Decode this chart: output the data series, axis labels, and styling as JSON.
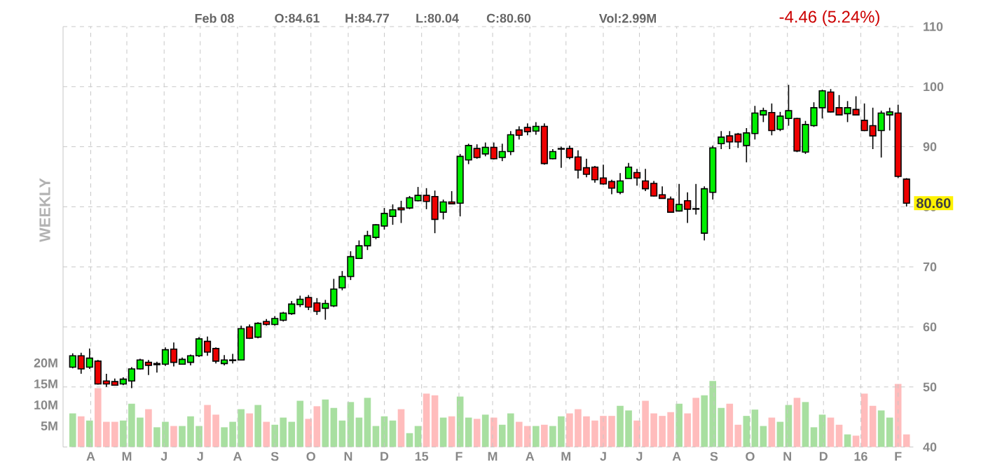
{
  "chart_data": {
    "type": "candlestick",
    "x": [
      "2014-03-17",
      "2014-03-24",
      "2014-03-31",
      "2014-04-07",
      "2014-04-14",
      "2014-04-21",
      "2014-04-28",
      "2014-05-05",
      "2014-05-12",
      "2014-05-19",
      "2014-05-26",
      "2014-06-02",
      "2014-06-09",
      "2014-06-16",
      "2014-06-23",
      "2014-06-30",
      "2014-07-07",
      "2014-07-14",
      "2014-07-21",
      "2014-07-28",
      "2014-08-04",
      "2014-08-11",
      "2014-08-18",
      "2014-08-25",
      "2014-09-01",
      "2014-09-08",
      "2014-09-15",
      "2014-09-22",
      "2014-09-29",
      "2014-10-06",
      "2014-10-13",
      "2014-10-20",
      "2014-10-27",
      "2014-11-03",
      "2014-11-10",
      "2014-11-17",
      "2014-11-24",
      "2014-12-01",
      "2014-12-08",
      "2014-12-15",
      "2014-12-22",
      "2014-12-29",
      "2015-01-05",
      "2015-01-12",
      "2015-01-19",
      "2015-01-26",
      "2015-02-02",
      "2015-02-09",
      "2015-02-16",
      "2015-02-23",
      "2015-03-02",
      "2015-03-09",
      "2015-03-16",
      "2015-03-23",
      "2015-03-30",
      "2015-04-06",
      "2015-04-13",
      "2015-04-20",
      "2015-04-27",
      "2015-05-04",
      "2015-05-11",
      "2015-05-18",
      "2015-05-25",
      "2015-06-01",
      "2015-06-08",
      "2015-06-15",
      "2015-06-22",
      "2015-06-29",
      "2015-07-06",
      "2015-07-13",
      "2015-07-20",
      "2015-07-27",
      "2015-08-03",
      "2015-08-10",
      "2015-08-17",
      "2015-08-24",
      "2015-08-31",
      "2015-09-07",
      "2015-09-14",
      "2015-09-21",
      "2015-09-28",
      "2015-10-05",
      "2015-10-12",
      "2015-10-19",
      "2015-10-26",
      "2015-11-02",
      "2015-11-09",
      "2015-11-16",
      "2015-11-23",
      "2015-11-30",
      "2015-12-07",
      "2015-12-14",
      "2015-12-21",
      "2015-12-28",
      "2016-01-04",
      "2016-01-11",
      "2016-01-18",
      "2016-01-25",
      "2016-02-01",
      "2016-02-08"
    ],
    "ohlc": [
      [
        53.3,
        55.6,
        53.1,
        55.2
      ],
      [
        55.2,
        55.7,
        52.2,
        53.0
      ],
      [
        53.3,
        56.4,
        53.0,
        54.8
      ],
      [
        54.3,
        54.5,
        50.4,
        50.5
      ],
      [
        51.0,
        52.2,
        50.0,
        50.5
      ],
      [
        50.9,
        51.4,
        50.2,
        50.3
      ],
      [
        50.5,
        51.6,
        50.3,
        51.3
      ],
      [
        51.0,
        53.3,
        49.8,
        53.0
      ],
      [
        53.0,
        54.7,
        52.9,
        54.5
      ],
      [
        54.1,
        54.5,
        52.0,
        53.6
      ],
      [
        53.7,
        54.2,
        52.4,
        53.9
      ],
      [
        53.8,
        56.6,
        53.5,
        56.2
      ],
      [
        56.3,
        57.4,
        53.4,
        54.1
      ],
      [
        53.8,
        54.9,
        53.7,
        54.6
      ],
      [
        54.1,
        55.4,
        53.6,
        55.2
      ],
      [
        55.2,
        58.3,
        55.0,
        58.0
      ],
      [
        57.6,
        58.4,
        55.2,
        55.8
      ],
      [
        56.4,
        56.6,
        53.9,
        54.3
      ],
      [
        53.9,
        55.3,
        53.6,
        54.5
      ],
      [
        54.4,
        55.5,
        53.9,
        54.5
      ],
      [
        54.5,
        60.2,
        54.5,
        59.7
      ],
      [
        60.0,
        60.4,
        58.0,
        58.1
      ],
      [
        58.3,
        60.8,
        58.1,
        60.6
      ],
      [
        60.9,
        61.3,
        60.2,
        60.4
      ],
      [
        60.4,
        61.8,
        60.2,
        61.4
      ],
      [
        61.1,
        62.5,
        60.9,
        62.3
      ],
      [
        62.2,
        64.3,
        62.0,
        63.8
      ],
      [
        63.7,
        65.2,
        63.3,
        64.6
      ],
      [
        64.9,
        65.3,
        62.8,
        63.3
      ],
      [
        64.0,
        64.8,
        62.0,
        62.6
      ],
      [
        63.1,
        64.5,
        61.2,
        63.9
      ],
      [
        63.5,
        68.0,
        63.3,
        66.3
      ],
      [
        66.5,
        69.3,
        66.1,
        68.4
      ],
      [
        68.4,
        72.6,
        67.8,
        71.7
      ],
      [
        71.4,
        74.4,
        71.3,
        73.5
      ],
      [
        73.5,
        76.0,
        72.8,
        75.2
      ],
      [
        74.9,
        77.1,
        74.6,
        77.0
      ],
      [
        76.8,
        79.8,
        76.2,
        78.9
      ],
      [
        78.4,
        80.4,
        77.0,
        79.5
      ],
      [
        79.8,
        81.0,
        77.3,
        79.5
      ],
      [
        79.8,
        81.8,
        79.6,
        81.5
      ],
      [
        81.0,
        83.3,
        80.9,
        81.9
      ],
      [
        81.9,
        83.1,
        79.6,
        80.9
      ],
      [
        81.7,
        82.7,
        75.6,
        77.9
      ],
      [
        79.1,
        81.2,
        77.9,
        80.8
      ],
      [
        80.8,
        82.6,
        80.5,
        80.5
      ],
      [
        80.6,
        88.8,
        78.4,
        88.4
      ],
      [
        87.8,
        90.5,
        87.1,
        90.2
      ],
      [
        89.7,
        90.4,
        88.0,
        88.2
      ],
      [
        88.8,
        90.7,
        88.4,
        89.9
      ],
      [
        89.9,
        90.7,
        87.9,
        88.0
      ],
      [
        88.2,
        90.5,
        87.6,
        89.2
      ],
      [
        89.2,
        92.6,
        88.6,
        92.0
      ],
      [
        92.8,
        93.4,
        91.2,
        91.9
      ],
      [
        93.2,
        93.9,
        91.9,
        92.5
      ],
      [
        92.6,
        94.1,
        92.0,
        93.4
      ],
      [
        93.4,
        93.9,
        87.0,
        87.2
      ],
      [
        88.0,
        89.6,
        87.9,
        89.2
      ],
      [
        89.6,
        90.0,
        86.5,
        89.7
      ],
      [
        89.7,
        90.2,
        87.9,
        88.2
      ],
      [
        88.3,
        89.4,
        84.7,
        86.1
      ],
      [
        86.5,
        88.0,
        84.9,
        85.4
      ],
      [
        86.6,
        86.8,
        84.0,
        84.5
      ],
      [
        84.8,
        87.0,
        83.7,
        83.8
      ],
      [
        84.2,
        84.5,
        82.1,
        83.1
      ],
      [
        82.4,
        85.6,
        82.1,
        84.3
      ],
      [
        84.7,
        87.3,
        84.7,
        86.6
      ],
      [
        85.7,
        86.3,
        83.5,
        84.8
      ],
      [
        84.3,
        86.3,
        82.6,
        83.0
      ],
      [
        83.9,
        84.3,
        81.7,
        81.8
      ],
      [
        82.0,
        83.4,
        81.4,
        81.4
      ],
      [
        81.3,
        81.7,
        79.0,
        79.1
      ],
      [
        79.3,
        83.8,
        79.2,
        80.4
      ],
      [
        81.0,
        82.4,
        77.3,
        79.6
      ],
      [
        79.7,
        83.8,
        78.7,
        79.6
      ],
      [
        75.6,
        83.4,
        74.4,
        83.0
      ],
      [
        82.4,
        90.2,
        81.2,
        89.8
      ],
      [
        90.5,
        92.6,
        89.6,
        91.6
      ],
      [
        91.8,
        92.6,
        89.6,
        90.8
      ],
      [
        92.1,
        92.3,
        89.8,
        90.8
      ],
      [
        90.2,
        93.1,
        87.4,
        92.3
      ],
      [
        92.2,
        96.8,
        91.2,
        95.6
      ],
      [
        95.3,
        96.5,
        94.1,
        96.0
      ],
      [
        95.7,
        97.2,
        91.9,
        92.7
      ],
      [
        92.9,
        95.8,
        92.6,
        95.1
      ],
      [
        94.7,
        100.3,
        93.5,
        96.0
      ],
      [
        94.7,
        94.8,
        89.1,
        89.3
      ],
      [
        89.1,
        94.3,
        88.8,
        93.7
      ],
      [
        93.5,
        97.4,
        93.3,
        96.5
      ],
      [
        96.5,
        99.5,
        94.7,
        99.3
      ],
      [
        99.1,
        99.6,
        95.7,
        95.8
      ],
      [
        96.5,
        98.6,
        95.2,
        95.3
      ],
      [
        95.5,
        97.6,
        94.1,
        96.5
      ],
      [
        96.2,
        98.4,
        95.2,
        95.3
      ],
      [
        94.4,
        97.2,
        92.6,
        92.7
      ],
      [
        93.5,
        96.5,
        89.6,
        91.8
      ],
      [
        92.7,
        96.0,
        88.2,
        95.6
      ],
      [
        95.3,
        96.5,
        92.7,
        95.8
      ],
      [
        95.6,
        97.0,
        84.8,
        85.06
      ],
      [
        84.61,
        84.77,
        80.04,
        80.6
      ]
    ],
    "series": [
      {
        "type": "bar",
        "axis": "y2",
        "values": [
          8.0,
          7.3,
          6.3,
          14.0,
          6.0,
          6.0,
          6.3,
          10.3,
          7.0,
          9.0,
          4.7,
          6.0,
          5.0,
          5.0,
          7.3,
          5.0,
          10.0,
          7.7,
          4.7,
          6.0,
          9.0,
          8.0,
          10.0,
          6.0,
          5.3,
          7.0,
          6.0,
          11.0,
          6.7,
          9.7,
          11.3,
          9.3,
          6.3,
          10.7,
          7.0,
          11.7,
          5.0,
          7.3,
          6.3,
          9.0,
          3.3,
          5.0,
          12.7,
          12.3,
          7.0,
          7.3,
          12.0,
          7.0,
          6.7,
          7.7,
          7.0,
          5.3,
          8.0,
          6.0,
          5.0,
          5.0,
          5.3,
          5.0,
          7.3,
          8.0,
          9.0,
          7.3,
          6.3,
          7.4,
          7.4,
          9.8,
          8.7,
          6.3,
          11.0,
          8.0,
          7.4,
          8.3,
          10.3,
          8.0,
          11.7,
          12.3,
          15.7,
          9.3,
          10.3,
          5.3,
          7.4,
          8.9,
          5.0,
          7.0,
          6.0,
          10.0,
          11.7,
          10.7,
          4.7,
          7.7,
          7.0,
          5.3,
          3.0,
          2.7,
          12.7,
          9.8,
          8.7,
          7.0,
          15.0,
          3.0
        ],
        "colors": [
          "#a8dfa0",
          "#ffbcbc",
          "#a8dfa0",
          "#ffbcbc",
          "#ffbcbc",
          "#ffbcbc",
          "#a8dfa0",
          "#a8dfa0",
          "#a8dfa0",
          "#ffbcbc",
          "#a8dfa0",
          "#a8dfa0",
          "#ffbcbc",
          "#a8dfa0",
          "#a8dfa0",
          "#a8dfa0",
          "#ffbcbc",
          "#ffbcbc",
          "#a8dfa0",
          "#a8dfa0",
          "#a8dfa0",
          "#ffbcbc",
          "#a8dfa0",
          "#ffbcbc",
          "#a8dfa0",
          "#a8dfa0",
          "#a8dfa0",
          "#a8dfa0",
          "#ffbcbc",
          "#ffbcbc",
          "#a8dfa0",
          "#a8dfa0",
          "#a8dfa0",
          "#a8dfa0",
          "#a8dfa0",
          "#a8dfa0",
          "#a8dfa0",
          "#a8dfa0",
          "#a8dfa0",
          "#ffbcbc",
          "#a8dfa0",
          "#a8dfa0",
          "#ffbcbc",
          "#ffbcbc",
          "#a8dfa0",
          "#ffbcbc",
          "#a8dfa0",
          "#a8dfa0",
          "#ffbcbc",
          "#a8dfa0",
          "#ffbcbc",
          "#a8dfa0",
          "#a8dfa0",
          "#ffbcbc",
          "#ffbcbc",
          "#a8dfa0",
          "#ffbcbc",
          "#a8dfa0",
          "#a8dfa0",
          "#ffbcbc",
          "#ffbcbc",
          "#ffbcbc",
          "#ffbcbc",
          "#ffbcbc",
          "#ffbcbc",
          "#a8dfa0",
          "#a8dfa0",
          "#ffbcbc",
          "#ffbcbc",
          "#ffbcbc",
          "#ffbcbc",
          "#ffbcbc",
          "#a8dfa0",
          "#ffbcbc",
          "#ffbcbc",
          "#a8dfa0",
          "#a8dfa0",
          "#a8dfa0",
          "#ffbcbc",
          "#ffbcbc",
          "#a8dfa0",
          "#a8dfa0",
          "#a8dfa0",
          "#ffbcbc",
          "#a8dfa0",
          "#a8dfa0",
          "#ffbcbc",
          "#a8dfa0",
          "#a8dfa0",
          "#a8dfa0",
          "#ffbcbc",
          "#ffbcbc",
          "#a8dfa0",
          "#ffbcbc",
          "#ffbcbc",
          "#ffbcbc",
          "#a8dfa0",
          "#a8dfa0",
          "#ffbcbc",
          "#ffbcbc"
        ]
      }
    ],
    "xlim": [
      "2014-03-09",
      "2016-02-14"
    ],
    "xticks": [
      {
        "value": "2014-04-01",
        "label": "A"
      },
      {
        "value": "2014-05-01",
        "label": "M"
      },
      {
        "value": "2014-06-01",
        "label": "J"
      },
      {
        "value": "2014-07-01",
        "label": "J"
      },
      {
        "value": "2014-08-01",
        "label": "A"
      },
      {
        "value": "2014-09-01",
        "label": "S"
      },
      {
        "value": "2014-10-01",
        "label": "O"
      },
      {
        "value": "2014-11-01",
        "label": "N"
      },
      {
        "value": "2014-12-01",
        "label": "D"
      },
      {
        "value": "2015-01-01",
        "label": "15"
      },
      {
        "value": "2015-02-01",
        "label": "F"
      },
      {
        "value": "2015-03-01",
        "label": "M"
      },
      {
        "value": "2015-04-01",
        "label": "A"
      },
      {
        "value": "2015-05-01",
        "label": "M"
      },
      {
        "value": "2015-06-01",
        "label": "J"
      },
      {
        "value": "2015-07-01",
        "label": "J"
      },
      {
        "value": "2015-08-01",
        "label": "A"
      },
      {
        "value": "2015-09-01",
        "label": "S"
      },
      {
        "value": "2015-10-01",
        "label": "O"
      },
      {
        "value": "2015-11-01",
        "label": "N"
      },
      {
        "value": "2015-12-01",
        "label": "D"
      },
      {
        "value": "2016-01-01",
        "label": "16"
      },
      {
        "value": "2016-02-01",
        "label": "F"
      }
    ],
    "ylim": [
      40,
      110
    ],
    "yticks": [
      40,
      50,
      60,
      70,
      80,
      90,
      100,
      110
    ],
    "y2lim": [
      0,
      100
    ],
    "y2ticks": [
      {
        "value": 5,
        "label": "5M"
      },
      {
        "value": 10,
        "label": "10M"
      },
      {
        "value": 15,
        "label": "15M"
      },
      {
        "value": 20,
        "label": "20M"
      }
    ],
    "grid": true,
    "annotations": [
      "Feb 08",
      "O:84.61",
      "H:84.77",
      "L:80.04",
      "C:80.60",
      "Vol:2.99M",
      "-4.46 (5.24%)",
      "WEEKLY",
      {
        "text": "80.60",
        "y": 80.6
      }
    ]
  }
}
